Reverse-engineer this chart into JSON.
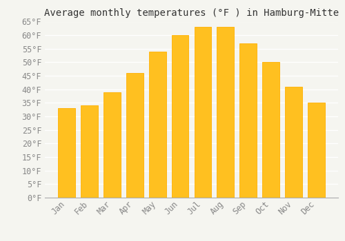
{
  "months": [
    "Jan",
    "Feb",
    "Mar",
    "Apr",
    "May",
    "Jun",
    "Jul",
    "Aug",
    "Sep",
    "Oct",
    "Nov",
    "Dec"
  ],
  "values": [
    33,
    34,
    39,
    46,
    54,
    60,
    63,
    63,
    57,
    50,
    41,
    35
  ],
  "bar_color_face": "#FFC020",
  "bar_color_edge": "#FFB000",
  "title": "Average monthly temperatures (°F ) in Hamburg-Mitte",
  "ylim": [
    0,
    65
  ],
  "ytick_step": 5,
  "background_color": "#f5f5f0",
  "grid_color": "#ffffff",
  "title_fontsize": 10,
  "tick_fontsize": 8.5,
  "font_family": "monospace",
  "bar_width": 0.75
}
